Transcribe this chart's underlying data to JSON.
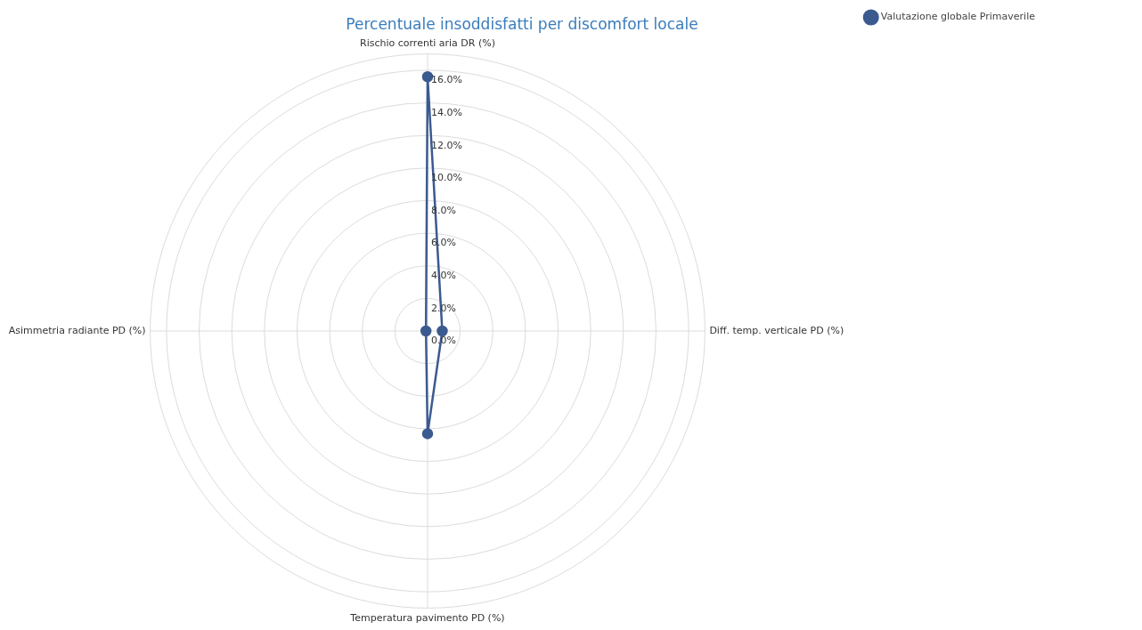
{
  "chart_data": {
    "type": "radar",
    "title": "Percentuale insoddisfatti per discomfort locale",
    "categories": [
      "Rischio correnti aria DR (%)",
      "Diff. temp. verticale PD (%)",
      "Temperatura pavimento PD (%)",
      "Asimmetria radiante PD (%)"
    ],
    "series": [
      {
        "name": "Valutazione globale Primaverile",
        "color": "#3b5a8f",
        "values": [
          15.6,
          0.9,
          6.3,
          0.1
        ]
      }
    ],
    "ylim": [
      0,
      17
    ],
    "yticks": [
      {
        "value": 0,
        "label": "0.0%"
      },
      {
        "value": 2,
        "label": "2.0%"
      },
      {
        "value": 4,
        "label": "4.0%"
      },
      {
        "value": 6,
        "label": "6.0%"
      },
      {
        "value": 8,
        "label": "8.0%"
      },
      {
        "value": 10,
        "label": "10.0%"
      },
      {
        "value": 12,
        "label": "12.0%"
      },
      {
        "value": 14,
        "label": "14.0%"
      },
      {
        "value": 16,
        "label": "16.0%"
      }
    ],
    "grid": true,
    "legend": "top right",
    "marker": "circle",
    "line_style": "solid"
  }
}
